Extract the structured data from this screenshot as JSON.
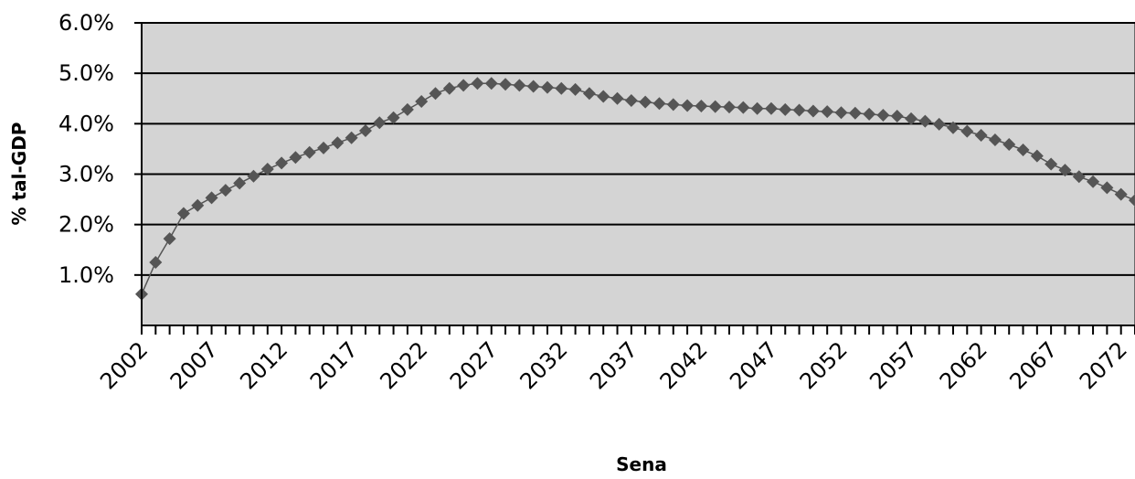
{
  "chart_data": {
    "type": "line",
    "title": "",
    "xlabel": "Sena",
    "ylabel": "% tal-GDP",
    "xlim": [
      2002,
      2073
    ],
    "ylim": [
      0,
      6
    ],
    "y_ticks": [
      "1.0%",
      "2.0%",
      "3.0%",
      "4.0%",
      "5.0%",
      "6.0%"
    ],
    "y_tick_values": [
      1,
      2,
      3,
      4,
      5,
      6
    ],
    "x_ticks": [
      "2002",
      "2007",
      "2012",
      "2017",
      "2022",
      "2027",
      "2032",
      "2037",
      "2042",
      "2047",
      "2052",
      "2057",
      "2062",
      "2067",
      "2072"
    ],
    "x_tick_values": [
      2002,
      2007,
      2012,
      2017,
      2022,
      2027,
      2032,
      2037,
      2042,
      2047,
      2052,
      2057,
      2062,
      2067,
      2072
    ],
    "grid": true,
    "legend": "none",
    "colors": {
      "plot_bg": "#d4d4d4",
      "series": "#555555",
      "grid": "#000000"
    },
    "series": [
      {
        "x": [
          2002,
          2003,
          2004,
          2005,
          2006,
          2007,
          2008,
          2009,
          2010,
          2011,
          2012,
          2013,
          2014,
          2015,
          2016,
          2017,
          2018,
          2019,
          2020,
          2021,
          2022,
          2023,
          2024,
          2025,
          2026,
          2027,
          2028,
          2029,
          2030,
          2031,
          2032,
          2033,
          2034,
          2035,
          2036,
          2037,
          2038,
          2039,
          2040,
          2041,
          2042,
          2043,
          2044,
          2045,
          2046,
          2047,
          2048,
          2049,
          2050,
          2051,
          2052,
          2053,
          2054,
          2055,
          2056,
          2057,
          2058,
          2059,
          2060,
          2061,
          2062,
          2063,
          2064,
          2065,
          2066,
          2067,
          2068,
          2069,
          2070,
          2071,
          2072,
          2073
        ],
        "values": [
          0.62,
          1.25,
          1.72,
          2.22,
          2.38,
          2.53,
          2.68,
          2.82,
          2.96,
          3.1,
          3.22,
          3.33,
          3.43,
          3.52,
          3.62,
          3.72,
          3.86,
          4.02,
          4.12,
          4.28,
          4.44,
          4.6,
          4.7,
          4.76,
          4.8,
          4.8,
          4.78,
          4.76,
          4.74,
          4.72,
          4.7,
          4.68,
          4.6,
          4.54,
          4.5,
          4.46,
          4.43,
          4.4,
          4.38,
          4.36,
          4.35,
          4.34,
          4.33,
          4.32,
          4.3,
          4.3,
          4.28,
          4.27,
          4.25,
          4.24,
          4.22,
          4.21,
          4.19,
          4.17,
          4.15,
          4.1,
          4.05,
          3.99,
          3.92,
          3.85,
          3.77,
          3.68,
          3.59,
          3.48,
          3.36,
          3.2,
          3.08,
          2.95,
          2.85,
          2.73,
          2.6,
          2.48
        ]
      }
    ]
  }
}
